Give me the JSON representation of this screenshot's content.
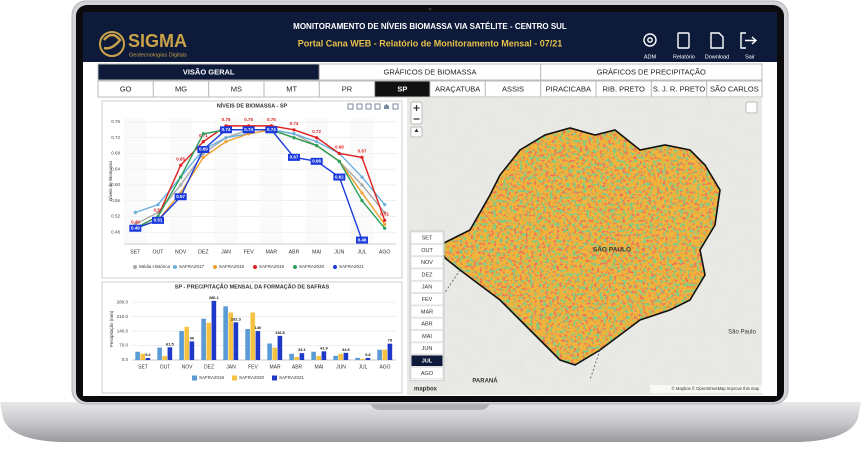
{
  "header": {
    "logo": "SIGMA",
    "logo_subtitle": "Geotecnologias Digitais",
    "title": "MONITORAMENTO DE NÍVEIS BIOMASSA VIA SATÉLITE - CENTRO SUL",
    "subtitle": "Portal Cana WEB - Relatório de Monitoramento Mensal - 07/21",
    "actions": [
      "ADM",
      "Relatório",
      "Download",
      "Sair"
    ]
  },
  "tabs": [
    "VISÃO GERAL",
    "GRÁFICOS DE BIOMASSA",
    "GRÁFICOS DE PRECIPITAÇÃO"
  ],
  "active_tab": "VISÃO GERAL",
  "regions": [
    "GO",
    "MG",
    "MS",
    "MT",
    "PR",
    "SP",
    "ARAÇATUBA",
    "ASSIS",
    "PIRACICABA",
    "RIB. PRETO",
    "S. J. R. PRETO",
    "SÃO CARLOS"
  ],
  "active_region": "SP",
  "chart_data": [
    {
      "type": "line",
      "title": "NÍVEIS DE BIOMASSA - SP",
      "y_label": "Níveis de Biomassa",
      "categories": [
        "SET",
        "OUT",
        "NOV",
        "DEZ",
        "JAN",
        "FEV",
        "MAR",
        "ABR",
        "MAI",
        "JUN",
        "JUL",
        "AGO"
      ],
      "ylim": [
        0.45,
        0.77
      ],
      "yticks": [
        0.48,
        0.52,
        0.56,
        {
          "value": 0.6,
          "label": "0.60"
        },
        0.64,
        0.68,
        0.72,
        0.76
      ],
      "grid": true,
      "series": [
        {
          "name": "Média Histórica",
          "color": "#a8a8a8",
          "values": [
            0.5,
            0.53,
            0.6,
            0.68,
            0.72,
            0.74,
            0.74,
            0.73,
            0.7,
            0.66,
            0.6,
            0.53
          ]
        },
        {
          "name": "SAFRA2017",
          "color": "#6ab0de",
          "values": [
            0.53,
            0.55,
            0.62,
            0.69,
            0.72,
            0.73,
            0.74,
            0.73,
            0.71,
            0.68,
            0.62,
            0.55
          ]
        },
        {
          "name": "SAFRA2018",
          "color": "#f0a030",
          "values": [
            0.49,
            0.51,
            0.58,
            0.67,
            0.71,
            0.73,
            0.74,
            0.72,
            0.7,
            0.66,
            0.58,
            0.5
          ]
        },
        {
          "name": "SAFRA2019",
          "color": "#e02020",
          "labels": true,
          "values": [
            0.49,
            0.52,
            0.65,
            0.71,
            0.75,
            0.75,
            0.75,
            0.74,
            0.72,
            0.68,
            0.67,
            0.51
          ]
        },
        {
          "name": "SAFRA2020",
          "color": "#2aa05a",
          "values": [
            0.49,
            0.52,
            0.62,
            0.73,
            0.74,
            0.74,
            0.74,
            0.72,
            0.7,
            0.66,
            0.56,
            0.49
          ]
        },
        {
          "name": "SAFRA2021",
          "color": "#1a3adc",
          "labels": true,
          "values": [
            0.49,
            0.51,
            0.57,
            0.69,
            0.74,
            0.74,
            0.74,
            0.67,
            0.66,
            0.62,
            0.46,
            null
          ]
        }
      ]
    },
    {
      "type": "bar",
      "title": "SP - PRECIPITAÇÃO MENSAL DA FORMAÇÃO DE SAFRAS",
      "y_label": "Precipitação (mm)",
      "categories": [
        "SET",
        "OUT",
        "NOV",
        "DEZ",
        "JAN",
        "FEV",
        "MAR",
        "ABR",
        "MAI",
        "JUN",
        "JUL",
        "AGO"
      ],
      "ylim": [
        0,
        300
      ],
      "yticks": [
        {
          "value": 0,
          "label": "0.0"
        },
        {
          "value": 70,
          "label": "70.0"
        },
        {
          "value": 140,
          "label": "140.0"
        },
        {
          "value": 210,
          "label": "210.0"
        },
        {
          "value": 280,
          "label": "280.0"
        }
      ],
      "grid": true,
      "series": [
        {
          "name": "SAFRA2019",
          "color": "#5b9bd5",
          "values": [
            40,
            60,
            140,
            200,
            260,
            150,
            80,
            30,
            40,
            20,
            10,
            50
          ]
        },
        {
          "name": "SAFRA2020",
          "color": "#f5c242",
          "values": [
            30,
            20,
            160,
            180,
            230,
            230,
            60,
            15,
            20,
            30,
            5,
            50
          ]
        },
        {
          "name": "SAFRA2021",
          "color": "#2038c8",
          "labels": true,
          "values": [
            9.6,
            61.5,
            90,
            286.1,
            182.3,
            140,
            116.8,
            33.1,
            41.9,
            34.6,
            9.8,
            79
          ]
        }
      ]
    }
  ],
  "map": {
    "months": [
      "SET",
      "OUT",
      "NOV",
      "DEZ",
      "JAN",
      "FEV",
      "MAR",
      "ABR",
      "MAI",
      "JUN",
      "JUL",
      "AGO"
    ],
    "selected_month": "JUL",
    "state_label": "SÃO PAULO",
    "neighbor_label": "PARANÁ",
    "city_label": "São Paulo",
    "logo": "mapbox",
    "attribution": "© Mapbox © OpenStreetMap Improve this map"
  }
}
